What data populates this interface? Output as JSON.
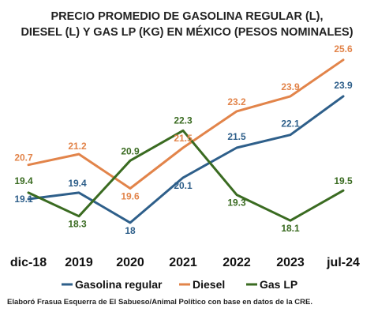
{
  "chart_data": {
    "type": "line",
    "title_lines": [
      "PRECIO PROMEDIO DE GASOLINA REGULAR (L),",
      "DIESEL (L) Y GAS LP (KG) EN MÉXICO (PESOS NOMINALES)"
    ],
    "categories": [
      "dic-18",
      "2019",
      "2020",
      "2021",
      "2022",
      "2023",
      "jul-24"
    ],
    "series": [
      {
        "name": "Gasolina regular",
        "color": "#2E5F8A",
        "values": [
          19.1,
          19.4,
          18,
          20.1,
          21.5,
          22.1,
          23.9
        ]
      },
      {
        "name": "Diesel",
        "color": "#E2844A",
        "values": [
          20.7,
          21.2,
          19.6,
          21.5,
          23.2,
          23.9,
          25.6
        ]
      },
      {
        "name": "Gas LP",
        "color": "#3A6B21",
        "values": [
          19.4,
          18.3,
          20.9,
          22.3,
          19.3,
          18.1,
          19.5
        ]
      }
    ],
    "xlabel": "",
    "ylabel": "",
    "grid": false,
    "legend_position": "bottom",
    "data_labels": true
  },
  "source_note": "Elaboró Frasua Esquerra de El Sabueso/Animal Político con base en datos de la CRE."
}
